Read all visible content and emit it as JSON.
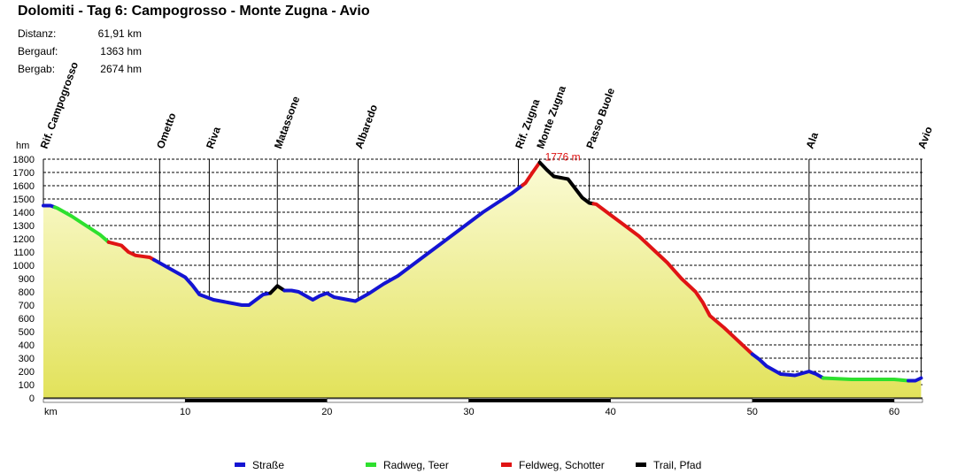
{
  "header": {
    "title": "Dolomiti - Tag 6: Campogrosso - Monte Zugna - Avio",
    "stats": [
      {
        "label": "Distanz:",
        "value": "61,91 km"
      },
      {
        "label": "Bergauf:",
        "value": "1363 hm"
      },
      {
        "label": "Bergab:",
        "value": "2674 hm"
      }
    ]
  },
  "chart_data": {
    "type": "area",
    "title": "Dolomiti - Tag 6: Campogrosso - Monte Zugna - Avio",
    "xlabel": "km",
    "ylabel": "hm",
    "xlim": [
      0,
      62
    ],
    "ylim": [
      0,
      1800
    ],
    "x_ticks": [
      10,
      20,
      30,
      40,
      50,
      60
    ],
    "y_ticks": [
      0,
      100,
      200,
      300,
      400,
      500,
      600,
      700,
      800,
      900,
      1000,
      1100,
      1200,
      1300,
      1400,
      1500,
      1600,
      1700,
      1800
    ],
    "grid": true,
    "max_label": "1776 m",
    "waypoints": [
      {
        "name": "Rif. Campogrosso",
        "km": 0
      },
      {
        "name": "Ometto",
        "km": 8.2
      },
      {
        "name": "Riva",
        "km": 11.7
      },
      {
        "name": "Matassone",
        "km": 16.5
      },
      {
        "name": "Albaredo",
        "km": 22.2
      },
      {
        "name": "Rif. Zugna",
        "km": 33.5
      },
      {
        "name": "Monte Zugna",
        "km": 35.0
      },
      {
        "name": "Passo Buole",
        "km": 38.5
      },
      {
        "name": "Ala",
        "km": 54.0
      },
      {
        "name": "Avio",
        "km": 61.9
      }
    ],
    "profile": [
      [
        0,
        1450
      ],
      [
        0.5,
        1450
      ],
      [
        1,
        1430
      ],
      [
        2,
        1370
      ],
      [
        3,
        1300
      ],
      [
        4,
        1230
      ],
      [
        4.6,
        1175
      ],
      [
        5.5,
        1150
      ],
      [
        6,
        1100
      ],
      [
        6.5,
        1075
      ],
      [
        7.5,
        1060
      ],
      [
        8,
        1030
      ],
      [
        9,
        970
      ],
      [
        10,
        910
      ],
      [
        10.5,
        850
      ],
      [
        11,
        780
      ],
      [
        12,
        740
      ],
      [
        13,
        720
      ],
      [
        13.5,
        710
      ],
      [
        14,
        700
      ],
      [
        14.5,
        700
      ],
      [
        15,
        740
      ],
      [
        15.5,
        780
      ],
      [
        16,
        790
      ],
      [
        16.5,
        845
      ],
      [
        17,
        810
      ],
      [
        17.5,
        810
      ],
      [
        18,
        800
      ],
      [
        18.5,
        770
      ],
      [
        19,
        740
      ],
      [
        19.5,
        770
      ],
      [
        20,
        790
      ],
      [
        20.5,
        760
      ],
      [
        21,
        750
      ],
      [
        21.5,
        740
      ],
      [
        22,
        730
      ],
      [
        22.5,
        760
      ],
      [
        23,
        790
      ],
      [
        24,
        860
      ],
      [
        25,
        920
      ],
      [
        26,
        1000
      ],
      [
        27,
        1080
      ],
      [
        28,
        1160
      ],
      [
        29,
        1240
      ],
      [
        30,
        1320
      ],
      [
        31,
        1400
      ],
      [
        32,
        1470
      ],
      [
        33,
        1540
      ],
      [
        33.5,
        1580
      ],
      [
        34,
        1620
      ],
      [
        34.5,
        1700
      ],
      [
        35,
        1776
      ],
      [
        35.5,
        1720
      ],
      [
        36,
        1670
      ],
      [
        37,
        1650
      ],
      [
        37.5,
        1580
      ],
      [
        38,
        1510
      ],
      [
        38.5,
        1470
      ],
      [
        39,
        1460
      ],
      [
        40,
        1380
      ],
      [
        41,
        1300
      ],
      [
        42,
        1220
      ],
      [
        43,
        1120
      ],
      [
        44,
        1020
      ],
      [
        45,
        900
      ],
      [
        46,
        800
      ],
      [
        46.5,
        720
      ],
      [
        47,
        620
      ],
      [
        48,
        530
      ],
      [
        49,
        430
      ],
      [
        50,
        330
      ],
      [
        50.5,
        290
      ],
      [
        51,
        240
      ],
      [
        52,
        180
      ],
      [
        53,
        170
      ],
      [
        54,
        200
      ],
      [
        54.5,
        180
      ],
      [
        55,
        150
      ],
      [
        56,
        145
      ],
      [
        57,
        140
      ],
      [
        58,
        140
      ],
      [
        59,
        140
      ],
      [
        60,
        140
      ],
      [
        61,
        130
      ],
      [
        61.5,
        130
      ],
      [
        61.9,
        150
      ]
    ],
    "segments": [
      {
        "from": 0,
        "to": 0.8,
        "type": "Straße"
      },
      {
        "from": 0.8,
        "to": 4.6,
        "type": "Radweg, Teer"
      },
      {
        "from": 4.6,
        "to": 7.8,
        "type": "Feldweg, Schotter"
      },
      {
        "from": 7.8,
        "to": 16,
        "type": "Straße"
      },
      {
        "from": 16,
        "to": 17,
        "type": "Trail, Pfad"
      },
      {
        "from": 17,
        "to": 33.8,
        "type": "Straße"
      },
      {
        "from": 33.8,
        "to": 35,
        "type": "Feldweg, Schotter"
      },
      {
        "from": 35,
        "to": 38.8,
        "type": "Trail, Pfad"
      },
      {
        "from": 38.8,
        "to": 50,
        "type": "Feldweg, Schotter"
      },
      {
        "from": 50,
        "to": 55,
        "type": "Straße"
      },
      {
        "from": 55,
        "to": 61,
        "type": "Radweg, Teer"
      },
      {
        "from": 61,
        "to": 61.9,
        "type": "Straße"
      }
    ],
    "legend": [
      {
        "label": "Straße",
        "color": "#1414d2"
      },
      {
        "label": "Radweg, Teer",
        "color": "#2ee02e"
      },
      {
        "label": "Feldweg, Schotter",
        "color": "#e01414"
      },
      {
        "label": "Trail, Pfad",
        "color": "#000000"
      }
    ]
  }
}
